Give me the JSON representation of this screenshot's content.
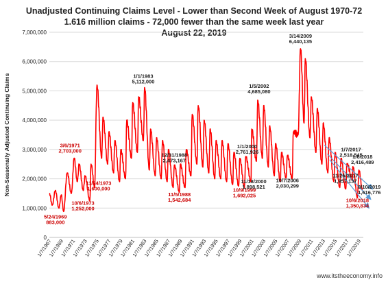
{
  "header": {
    "title_1": "Unadjusted Continuing Claims Level - Lower than Second Week of August 1970-72",
    "title_2": "1.616 million claims -  72,000 fewer than the same week last year",
    "title_3": "August 22, 2019"
  },
  "source": "www.itstheeconomy.info",
  "chart_data": {
    "type": "line",
    "title": "Unadjusted Continuing Claims Level - Lower than Second Week of August 1970-72",
    "ylabel": "Non-Seasonally Adjusted Continuing Claims",
    "xlabel": "",
    "xlim": [
      1967.0,
      2019.75
    ],
    "ylim": [
      0,
      7000000
    ],
    "yticks": [
      0,
      1000000,
      2000000,
      3000000,
      4000000,
      5000000,
      6000000,
      7000000
    ],
    "ytick_labels": [
      "0",
      "1,000,000",
      "2,000,000",
      "3,000,000",
      "4,000,000",
      "5,000,000",
      "6,000,000",
      "7,000,000"
    ],
    "xticks": [
      1967,
      1969,
      1971,
      1973,
      1975,
      1977,
      1979,
      1981,
      1983,
      1985,
      1987,
      1989,
      1991,
      1993,
      1995,
      1997,
      1999,
      2001,
      2003,
      2005,
      2007,
      2009,
      2011,
      2013,
      2015,
      2017,
      2019
    ],
    "xtick_labels": [
      "1/7/1967",
      "1/7/1969",
      "1/7/1971",
      "1/7/1973",
      "1/7/1975",
      "1/7/1977",
      "1/7/1979",
      "1/7/1981",
      "1/7/1983",
      "1/7/1985",
      "1/7/1987",
      "1/7/1989",
      "1/7/1991",
      "1/7/1993",
      "1/7/1995",
      "1/7/1997",
      "1/7/1999",
      "1/7/2001",
      "1/7/2003",
      "1/7/2005",
      "1/7/2007",
      "1/7/2009",
      "1/7/2011",
      "1/7/2013",
      "1/7/2015",
      "1/7/2017",
      "1/7/2019"
    ],
    "grid": true,
    "line_color": "#ff0000",
    "annotation_color_red": "#cc0000",
    "annotation_color_black": "#222222",
    "trend_color": "#5b9bd5",
    "series": [
      {
        "peaks": [
          [
            1967.0,
            1500000
          ],
          [
            1968.0,
            1600000
          ],
          [
            1969.0,
            1450000
          ],
          [
            1970.0,
            2200000
          ],
          [
            1971.17,
            2703000
          ],
          [
            1972.0,
            2500000
          ],
          [
            1973.0,
            2100000
          ],
          [
            1974.0,
            2500000
          ],
          [
            1975.0,
            5200000
          ],
          [
            1976.0,
            4100000
          ],
          [
            1977.0,
            3600000
          ],
          [
            1978.0,
            3300000
          ],
          [
            1979.0,
            3000000
          ],
          [
            1980.0,
            4000000
          ],
          [
            1981.0,
            4600000
          ],
          [
            1982.0,
            4800000
          ],
          [
            1983.0,
            5112000
          ],
          [
            1984.0,
            3700000
          ],
          [
            1985.0,
            3400000
          ],
          [
            1986.0,
            3300000
          ],
          [
            1987.0,
            3000000
          ],
          [
            1988.0,
            2473167
          ],
          [
            1989.0,
            2500000
          ],
          [
            1990.0,
            3000000
          ],
          [
            1991.0,
            4200000
          ],
          [
            1992.0,
            4500000
          ],
          [
            1993.0,
            4000000
          ],
          [
            1994.0,
            3700000
          ],
          [
            1995.0,
            3300000
          ],
          [
            1996.0,
            3300000
          ],
          [
            1997.0,
            3200000
          ],
          [
            1998.0,
            2900000
          ],
          [
            1999.0,
            2700000
          ],
          [
            2000.0,
            2761926
          ],
          [
            2001.0,
            3700000
          ],
          [
            2002.0,
            4685080
          ],
          [
            2003.0,
            4500000
          ],
          [
            2004.0,
            3800000
          ],
          [
            2005.0,
            3200000
          ],
          [
            2006.0,
            2900000
          ],
          [
            2007.0,
            2800000
          ],
          [
            2008.0,
            3600000
          ],
          [
            2009.2,
            6440135
          ],
          [
            2010.0,
            6100000
          ],
          [
            2011.0,
            4800000
          ],
          [
            2012.0,
            4400000
          ],
          [
            2013.0,
            3900000
          ],
          [
            2014.0,
            3400000
          ],
          [
            2015.0,
            2900000
          ],
          [
            2016.0,
            2700000
          ],
          [
            2017.0,
            2518545
          ],
          [
            2018.0,
            2416489
          ],
          [
            2019.0,
            2300000
          ]
        ],
        "troughs": [
          [
            1967.5,
            1100000
          ],
          [
            1968.6,
            1000000
          ],
          [
            1969.4,
            883000
          ],
          [
            1970.7,
            1500000
          ],
          [
            1971.7,
            1900000
          ],
          [
            1972.7,
            1600000
          ],
          [
            1973.8,
            1252000
          ],
          [
            1974.6,
            1700000
          ],
          [
            1975.8,
            2700000
          ],
          [
            1976.8,
            2500000
          ],
          [
            1977.8,
            2200000
          ],
          [
            1978.8,
            1900000
          ],
          [
            1979.8,
            2000000
          ],
          [
            1980.8,
            2700000
          ],
          [
            1981.8,
            2900000
          ],
          [
            1982.8,
            3300000
          ],
          [
            1983.8,
            2300000
          ],
          [
            1984.8,
            2100000
          ],
          [
            1985.8,
            2000000
          ],
          [
            1986.8,
            1900000
          ],
          [
            1987.8,
            1700000
          ],
          [
            1988.85,
            1542684
          ],
          [
            1989.8,
            1700000
          ],
          [
            1990.8,
            2100000
          ],
          [
            1991.8,
            2500000
          ],
          [
            1992.8,
            2400000
          ],
          [
            1993.8,
            2200000
          ],
          [
            1994.8,
            2000000
          ],
          [
            1995.8,
            2000000
          ],
          [
            1996.8,
            1900000
          ],
          [
            1997.8,
            1800000
          ],
          [
            1998.8,
            1750000
          ],
          [
            1999.77,
            1692025
          ],
          [
            2000.87,
            1898521
          ],
          [
            2001.8,
            2600000
          ],
          [
            2002.8,
            2700000
          ],
          [
            2003.8,
            2400000
          ],
          [
            2004.8,
            2100000
          ],
          [
            2005.8,
            1900000
          ],
          [
            2006.77,
            2030299
          ],
          [
            2007.8,
            2000000
          ],
          [
            2008.8,
            3500000
          ],
          [
            2009.8,
            3900000
          ],
          [
            2010.8,
            3400000
          ],
          [
            2011.8,
            2900000
          ],
          [
            2012.8,
            2500000
          ],
          [
            2013.8,
            2200000
          ],
          [
            2014.8,
            1900000
          ],
          [
            2015.8,
            1700000
          ],
          [
            2016.8,
            1650000
          ],
          [
            2017.9,
            1957137
          ],
          [
            2018.76,
            1350834
          ],
          [
            2019.61,
            1616776
          ]
        ]
      }
    ],
    "annotations": [
      {
        "x": 1969.4,
        "y": 883000,
        "date": "5/24/1969",
        "value": "883,000",
        "color": "red"
      },
      {
        "x": 1971.17,
        "y": 2703000,
        "date": "3/6/1971",
        "value": "2,703,000",
        "color": "red"
      },
      {
        "x": 1973.8,
        "y": 1252000,
        "date": "10/6/1973",
        "value": "1,252,000",
        "color": "red"
      },
      {
        "x": 1973.9,
        "y": 1600000,
        "date": "11/24/1973",
        "value": "1,600,000",
        "color": "red"
      },
      {
        "x": 1983.0,
        "y": 5112000,
        "date": "1/1/1983",
        "value": "5,112,000",
        "color": "black"
      },
      {
        "x": 1988.0,
        "y": 2473167,
        "date": "12/31/1988",
        "value": "2,473,167",
        "color": "black"
      },
      {
        "x": 1988.85,
        "y": 1542684,
        "date": "11/5/1988",
        "value": "1,542,684",
        "color": "red"
      },
      {
        "x": 1999.77,
        "y": 1692025,
        "date": "10/9/1999",
        "value": "1,692,025",
        "color": "red"
      },
      {
        "x": 2000.0,
        "y": 2761926,
        "date": "1/1/2000",
        "value": "2,761,926",
        "color": "black"
      },
      {
        "x": 2000.87,
        "y": 1898521,
        "date": "11/18/2000",
        "value": "1,898,521",
        "color": "black"
      },
      {
        "x": 2002.0,
        "y": 4685080,
        "date": "1/5/2002",
        "value": "4,685,080",
        "color": "black"
      },
      {
        "x": 2006.77,
        "y": 2030299,
        "date": "10/7/2006",
        "value": "2,030,299",
        "color": "black"
      },
      {
        "x": 2009.2,
        "y": 6440135,
        "date": "3/14/2009",
        "value": "6,440,135",
        "color": "black"
      },
      {
        "x": 2017.0,
        "y": 2518545,
        "date": "1/7/2017",
        "value": "2,518,545",
        "color": "black"
      },
      {
        "x": 2017.9,
        "y": 1957137,
        "date": "11/25/2017",
        "value": "1,957,137",
        "color": "black"
      },
      {
        "x": 2018.0,
        "y": 2416489,
        "date": "1/6/2018",
        "value": "2,416,489",
        "color": "black"
      },
      {
        "x": 2018.76,
        "y": 1350834,
        "date": "10/6/2018",
        "value": "1,350,834",
        "color": "red"
      },
      {
        "x": 2019.61,
        "y": 1616776,
        "date": "8/10/2019",
        "value": "1,616,776",
        "color": "black"
      }
    ],
    "trend_lines": [
      {
        "from": [
          2013.2,
          3150000
        ],
        "to": [
          2021.3,
          1650000
        ]
      },
      {
        "from": [
          2013.7,
          2850000
        ],
        "to": [
          2021.0,
          1300000
        ]
      },
      {
        "from": [
          2014.1,
          2650000
        ],
        "to": [
          2020.7,
          1000000
        ]
      }
    ]
  }
}
